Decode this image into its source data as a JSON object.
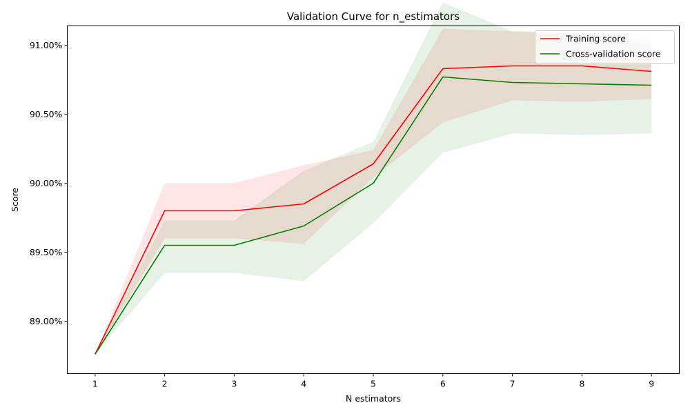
{
  "chart_data": {
    "type": "line",
    "title": "Validation Curve for n_estimators",
    "xlabel": "N estimators",
    "ylabel": "Score",
    "x": [
      1,
      2,
      3,
      4,
      5,
      6,
      7,
      8,
      9
    ],
    "xlim": [
      0.6,
      9.4
    ],
    "ylim": [
      88.62,
      91.14
    ],
    "y_ticks": [
      89.0,
      89.5,
      90.0,
      90.5,
      91.0
    ],
    "y_tick_labels": [
      "89.00%",
      "89.50%",
      "90.00%",
      "90.50%",
      "91.00%"
    ],
    "x_tick_labels": [
      "1",
      "2",
      "3",
      "4",
      "5",
      "6",
      "7",
      "8",
      "9"
    ],
    "grid": false,
    "legend_position": "top-right",
    "series": [
      {
        "name": "Training score",
        "color": "#ff0000",
        "band_color": "#ff0000",
        "values": [
          88.76,
          89.8,
          89.8,
          89.85,
          90.14,
          90.83,
          90.85,
          90.85,
          90.81
        ],
        "upper": [
          88.76,
          90.0,
          90.0,
          90.13,
          90.24,
          91.12,
          91.1,
          91.1,
          91.0
        ],
        "lower": [
          88.76,
          89.6,
          89.6,
          89.56,
          90.04,
          90.44,
          90.6,
          90.59,
          90.61
        ]
      },
      {
        "name": "Cross-validation score",
        "color": "#008000",
        "band_color": "#008000",
        "values": [
          88.76,
          89.55,
          89.55,
          89.69,
          90.0,
          90.77,
          90.73,
          90.72,
          90.71
        ],
        "upper": [
          88.76,
          89.73,
          89.73,
          90.09,
          90.3,
          91.31,
          91.1,
          91.08,
          91.05
        ],
        "lower": [
          88.76,
          89.35,
          89.35,
          89.29,
          89.71,
          90.22,
          90.36,
          90.35,
          90.36
        ]
      }
    ]
  }
}
